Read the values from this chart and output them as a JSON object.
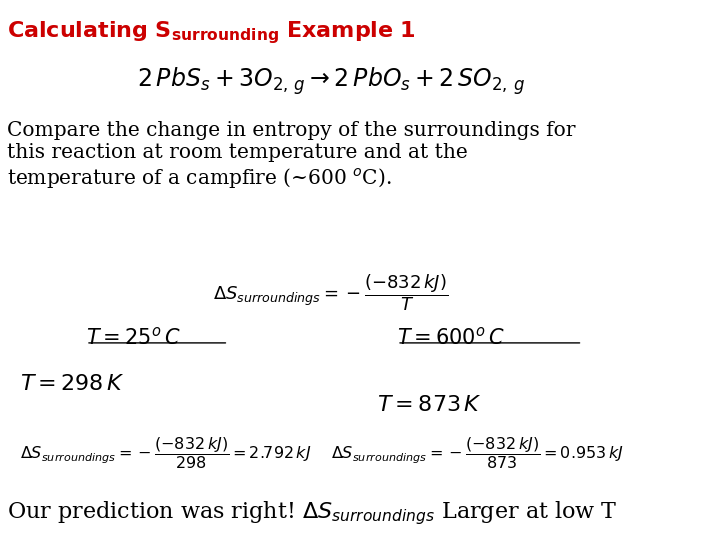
{
  "title_part1": "Calculating S",
  "title_sub": "surrounding",
  "title_part2": " Example 1",
  "title_color": "#cc0000",
  "background_color": "#ffffff",
  "figsize": [
    7.2,
    5.4
  ],
  "dpi": 100
}
